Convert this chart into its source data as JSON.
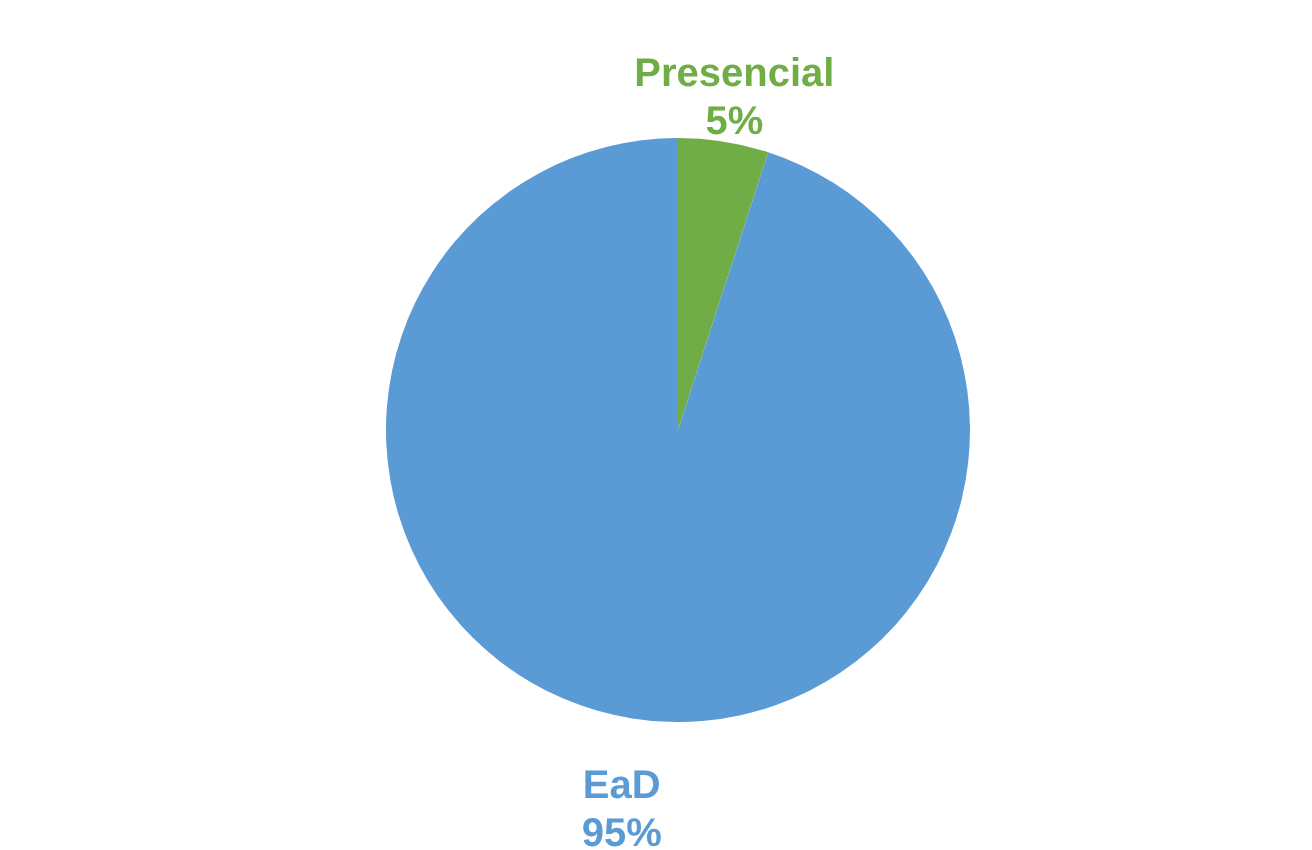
{
  "chart_data": {
    "type": "pie",
    "categories": [
      "Presencial",
      "EaD"
    ],
    "values": [
      5,
      95
    ],
    "colors": [
      "#70ad47",
      "#5b9bd5"
    ],
    "value_labels": [
      "5%",
      "95%"
    ]
  }
}
